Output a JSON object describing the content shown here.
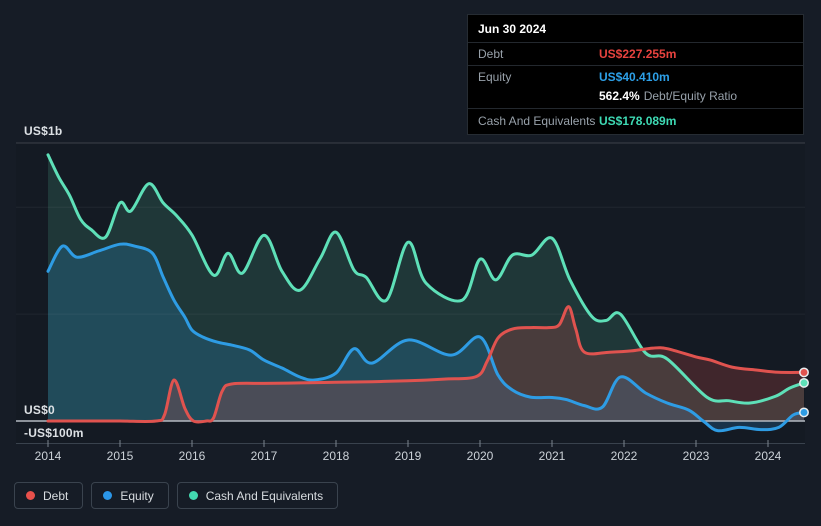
{
  "tooltip": {
    "title": "Jun 30 2024",
    "debt_label": "Debt",
    "debt_value": "US$227.255m",
    "equity_label": "Equity",
    "equity_value": "US$40.410m",
    "ratio_value": "562.4%",
    "ratio_suffix": "Debt/Equity Ratio",
    "cash_label": "Cash And Equivalents",
    "cash_value": "US$178.089m"
  },
  "y_axis": {
    "top_label": "US$1b",
    "zero_label": "US$0",
    "bottom_label": "-US$100m"
  },
  "x_axis": {
    "years": [
      "2014",
      "2015",
      "2016",
      "2017",
      "2018",
      "2019",
      "2020",
      "2021",
      "2022",
      "2023",
      "2024"
    ]
  },
  "legend": {
    "items": [
      {
        "label": "Debt",
        "color": "#e8504b"
      },
      {
        "label": "Equity",
        "color": "#2b96e8"
      },
      {
        "label": "Cash And Equivalents",
        "color": "#43d9b0"
      }
    ]
  },
  "chart_data": {
    "type": "area",
    "title": "Debt to Equity History",
    "unit": "US$ millions",
    "x_unit": "decimal years",
    "xlim": [
      2013.55,
      2024.5
    ],
    "ylim": [
      -103,
      1300
    ],
    "grid_values_m": [
      1000,
      500
    ],
    "zero_value_m": 0,
    "legend_position": "bottom-left",
    "latest": {
      "date": "Jun 30 2024",
      "debt_m": 227.255,
      "equity_m": 40.41,
      "cash_m": 178.089,
      "debt_equity_ratio": "562.4%"
    },
    "series": [
      {
        "name": "Cash And Equivalents",
        "line_color": "#5ee0b8",
        "fill_color": "rgba(94,224,184,0.15)",
        "points": [
          [
            2014.0,
            1245
          ],
          [
            2014.15,
            1140
          ],
          [
            2014.3,
            1055
          ],
          [
            2014.45,
            945
          ],
          [
            2014.6,
            895
          ],
          [
            2014.8,
            860
          ],
          [
            2015.0,
            1020
          ],
          [
            2015.15,
            982
          ],
          [
            2015.4,
            1110
          ],
          [
            2015.6,
            1020
          ],
          [
            2015.78,
            962
          ],
          [
            2016.0,
            870
          ],
          [
            2016.3,
            682
          ],
          [
            2016.5,
            785
          ],
          [
            2016.7,
            692
          ],
          [
            2017.0,
            869
          ],
          [
            2017.25,
            700
          ],
          [
            2017.5,
            612
          ],
          [
            2017.78,
            760
          ],
          [
            2018.0,
            883
          ],
          [
            2018.25,
            706
          ],
          [
            2018.42,
            672
          ],
          [
            2018.7,
            565
          ],
          [
            2019.0,
            836
          ],
          [
            2019.25,
            645
          ],
          [
            2019.75,
            565
          ],
          [
            2020.0,
            757
          ],
          [
            2020.22,
            660
          ],
          [
            2020.45,
            776
          ],
          [
            2020.72,
            776
          ],
          [
            2021.0,
            855
          ],
          [
            2021.25,
            660
          ],
          [
            2021.55,
            490
          ],
          [
            2021.75,
            470
          ],
          [
            2021.95,
            500
          ],
          [
            2022.3,
            318
          ],
          [
            2022.6,
            290
          ],
          [
            2023.15,
            112
          ],
          [
            2023.45,
            95
          ],
          [
            2023.75,
            84
          ],
          [
            2024.1,
            115
          ],
          [
            2024.3,
            154
          ],
          [
            2024.5,
            178.089
          ]
        ]
      },
      {
        "name": "Equity",
        "line_color": "#2e9ce4",
        "fill_color": "rgba(46,156,228,0.20)",
        "points": [
          [
            2014.0,
            700
          ],
          [
            2014.2,
            818
          ],
          [
            2014.4,
            766
          ],
          [
            2014.7,
            795
          ],
          [
            2015.0,
            827
          ],
          [
            2015.2,
            818
          ],
          [
            2015.45,
            785
          ],
          [
            2015.6,
            673
          ],
          [
            2015.75,
            565
          ],
          [
            2015.9,
            486
          ],
          [
            2016.0,
            425
          ],
          [
            2016.15,
            393
          ],
          [
            2016.35,
            369
          ],
          [
            2016.55,
            355
          ],
          [
            2016.8,
            332
          ],
          [
            2017.0,
            285
          ],
          [
            2017.25,
            248
          ],
          [
            2017.5,
            206
          ],
          [
            2017.7,
            192
          ],
          [
            2018.0,
            224
          ],
          [
            2018.25,
            338
          ],
          [
            2018.5,
            271
          ],
          [
            2019.0,
            379
          ],
          [
            2019.6,
            308
          ],
          [
            2020.0,
            393
          ],
          [
            2020.25,
            215
          ],
          [
            2020.45,
            145
          ],
          [
            2020.7,
            112
          ],
          [
            2021.0,
            110
          ],
          [
            2021.2,
            100
          ],
          [
            2021.45,
            72
          ],
          [
            2021.7,
            65
          ],
          [
            2021.95,
            206
          ],
          [
            2022.3,
            131
          ],
          [
            2022.6,
            84
          ],
          [
            2022.9,
            51
          ],
          [
            2023.1,
            0
          ],
          [
            2023.3,
            -45
          ],
          [
            2023.6,
            -30
          ],
          [
            2023.9,
            -40
          ],
          [
            2024.15,
            -30
          ],
          [
            2024.35,
            28
          ],
          [
            2024.5,
            40.41
          ]
        ]
      },
      {
        "name": "Debt",
        "line_color": "#e0534f",
        "fill_color": "rgba(224,83,79,0.22)",
        "points": [
          [
            2014.0,
            0
          ],
          [
            2014.5,
            0
          ],
          [
            2015.0,
            0
          ],
          [
            2015.5,
            0
          ],
          [
            2015.62,
            30
          ],
          [
            2015.75,
            192
          ],
          [
            2015.9,
            60
          ],
          [
            2016.02,
            0
          ],
          [
            2016.2,
            0
          ],
          [
            2016.3,
            15
          ],
          [
            2016.42,
            140
          ],
          [
            2016.55,
            173
          ],
          [
            2017.0,
            176
          ],
          [
            2017.5,
            178
          ],
          [
            2018.0,
            181
          ],
          [
            2018.5,
            184
          ],
          [
            2019.0,
            188
          ],
          [
            2019.5,
            196
          ],
          [
            2019.95,
            208
          ],
          [
            2020.1,
            280
          ],
          [
            2020.25,
            388
          ],
          [
            2020.45,
            430
          ],
          [
            2020.7,
            437
          ],
          [
            2020.95,
            437
          ],
          [
            2021.1,
            450
          ],
          [
            2021.23,
            535
          ],
          [
            2021.33,
            430
          ],
          [
            2021.45,
            322
          ],
          [
            2021.8,
            322
          ],
          [
            2022.1,
            328
          ],
          [
            2022.4,
            341
          ],
          [
            2022.6,
            338
          ],
          [
            2023.0,
            300
          ],
          [
            2023.2,
            285
          ],
          [
            2023.5,
            252
          ],
          [
            2023.85,
            238
          ],
          [
            2024.15,
            228
          ],
          [
            2024.5,
            227.255
          ]
        ]
      }
    ]
  }
}
